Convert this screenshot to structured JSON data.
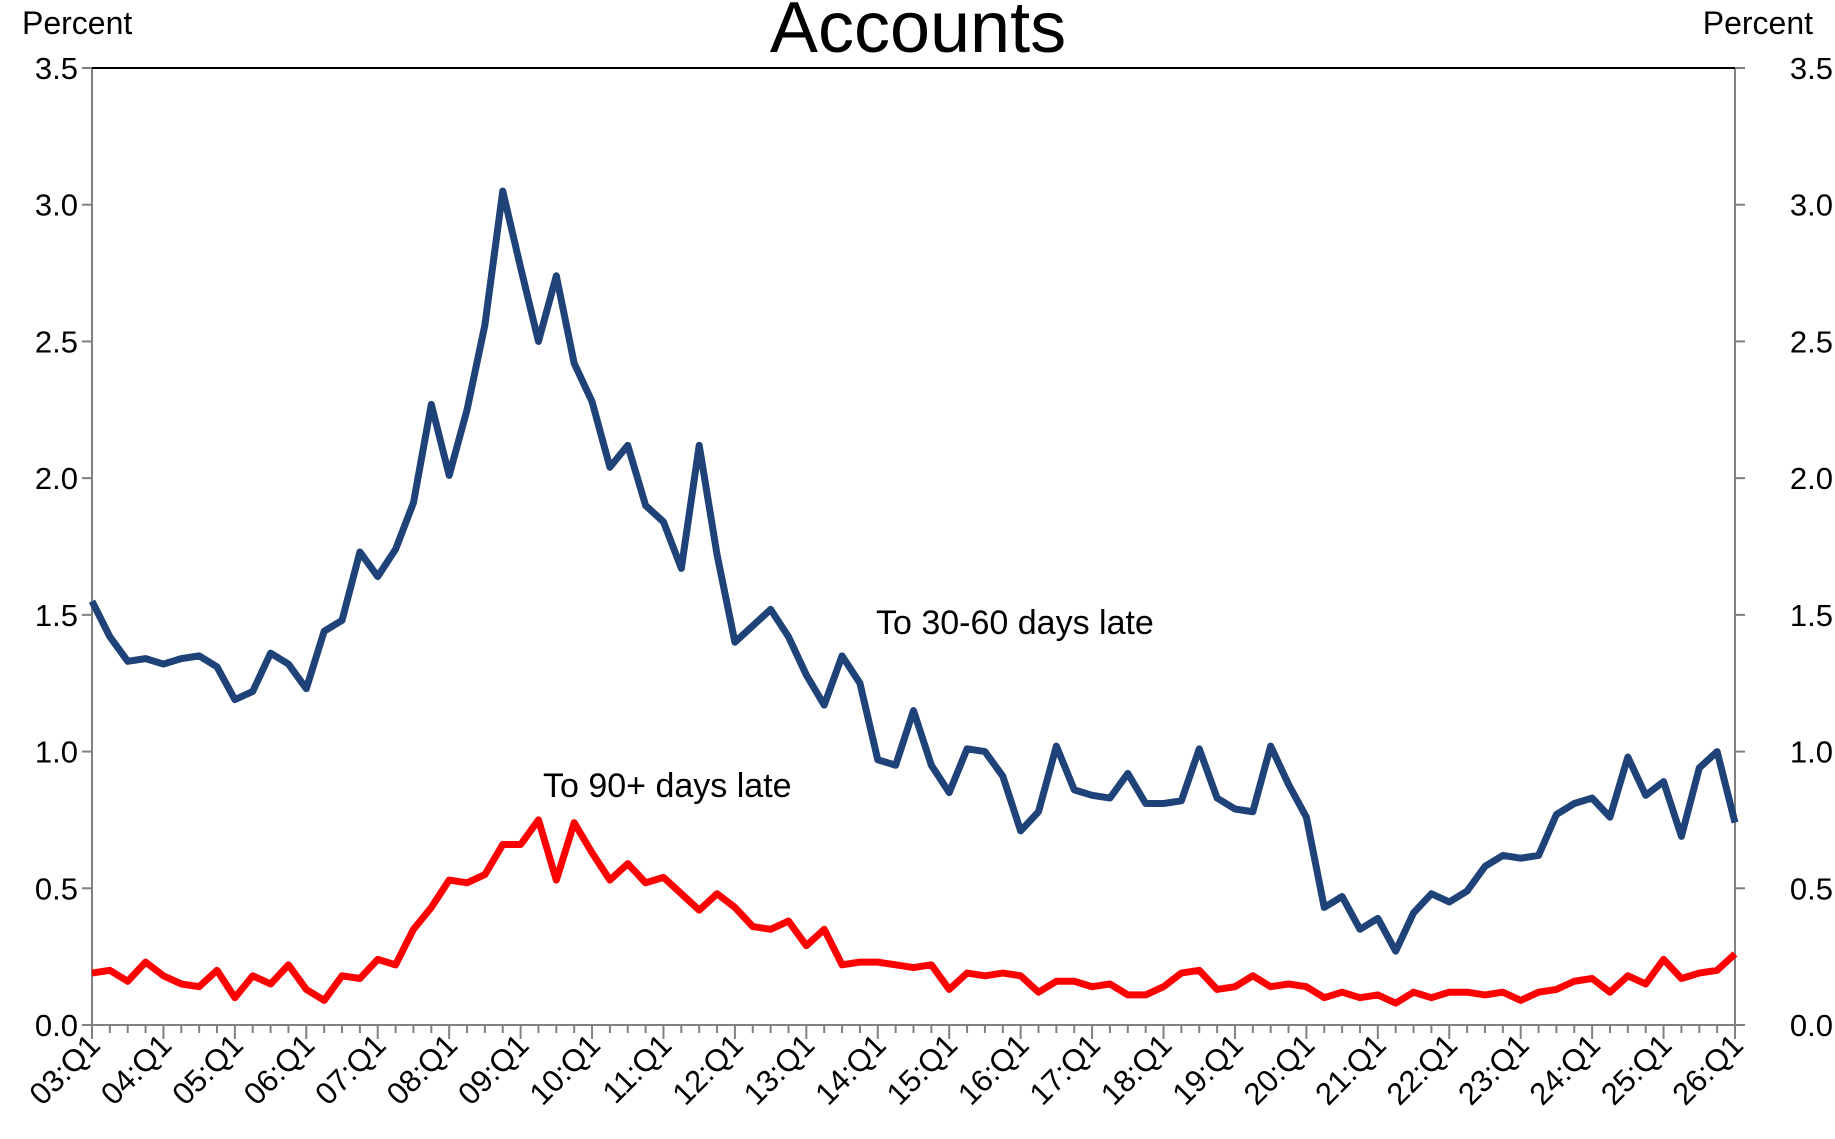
{
  "chart_data": {
    "type": "line",
    "title": "Accounts",
    "ylabel": "Percent",
    "y2label": "Percent",
    "categories": [
      "03:Q1",
      null,
      null,
      null,
      "04:Q1",
      null,
      null,
      null,
      "05:Q1",
      null,
      null,
      null,
      "06:Q1",
      null,
      null,
      null,
      "07:Q1",
      null,
      null,
      null,
      "08:Q1",
      null,
      null,
      null,
      "09:Q1",
      null,
      null,
      null,
      "10:Q1",
      null,
      null,
      null,
      "11:Q1",
      null,
      null,
      null,
      "12:Q1",
      null,
      null,
      null,
      "13:Q1",
      null,
      null,
      null,
      "14:Q1",
      null,
      null,
      null,
      "15:Q1",
      null,
      null,
      null,
      "16:Q1",
      null,
      null,
      null,
      "17:Q1",
      null,
      null,
      null,
      "18:Q1",
      null,
      null,
      null,
      "19:Q1",
      null,
      null,
      null,
      "20:Q1",
      null,
      null,
      null,
      "21:Q1",
      null,
      null,
      null,
      "22:Q1",
      null,
      null,
      null,
      "23:Q1",
      null,
      null,
      null,
      "24:Q1",
      null,
      null,
      null,
      "25:Q1",
      null,
      null,
      null,
      "26:Q1"
    ],
    "series": [
      {
        "name": "To 30-60 days late",
        "color": "#1f4278",
        "values": [
          1.55,
          1.42,
          1.33,
          1.34,
          1.32,
          1.34,
          1.35,
          1.31,
          1.19,
          1.22,
          1.36,
          1.32,
          1.23,
          1.44,
          1.48,
          1.73,
          1.64,
          1.74,
          1.91,
          2.27,
          2.01,
          2.25,
          2.56,
          3.05,
          2.77,
          2.5,
          2.74,
          2.42,
          2.28,
          2.04,
          2.12,
          1.9,
          1.84,
          1.67,
          2.12,
          1.72,
          1.4,
          1.46,
          1.52,
          1.42,
          1.28,
          1.17,
          1.35,
          1.25,
          0.97,
          0.95,
          1.15,
          0.95,
          0.85,
          1.01,
          1.0,
          0.91,
          0.71,
          0.78,
          1.02,
          0.86,
          0.84,
          0.83,
          0.92,
          0.81,
          0.81,
          0.82,
          1.01,
          0.83,
          0.79,
          0.78,
          1.02,
          0.88,
          0.76,
          0.43,
          0.47,
          0.35,
          0.39,
          0.27,
          0.41,
          0.48,
          0.45,
          0.49,
          0.58,
          0.62,
          0.61,
          0.62,
          0.77,
          0.81,
          0.83,
          0.76,
          0.98,
          0.84,
          0.89,
          0.69,
          0.94,
          1.0,
          0.74
        ]
      },
      {
        "name": "To 90+ days late",
        "color": "#ff0000",
        "values": [
          0.19,
          0.2,
          0.16,
          0.23,
          0.18,
          0.15,
          0.14,
          0.2,
          0.1,
          0.18,
          0.15,
          0.22,
          0.13,
          0.09,
          0.18,
          0.17,
          0.24,
          0.22,
          0.35,
          0.43,
          0.53,
          0.52,
          0.55,
          0.66,
          0.66,
          0.75,
          0.53,
          0.74,
          0.63,
          0.53,
          0.59,
          0.52,
          0.54,
          0.48,
          0.42,
          0.48,
          0.43,
          0.36,
          0.35,
          0.38,
          0.29,
          0.35,
          0.22,
          0.23,
          0.23,
          0.22,
          0.21,
          0.22,
          0.13,
          0.19,
          0.18,
          0.19,
          0.18,
          0.12,
          0.16,
          0.16,
          0.14,
          0.15,
          0.11,
          0.11,
          0.14,
          0.19,
          0.2,
          0.13,
          0.14,
          0.18,
          0.14,
          0.15,
          0.14,
          0.1,
          0.12,
          0.1,
          0.11,
          0.08,
          0.12,
          0.1,
          0.12,
          0.12,
          0.11,
          0.12,
          0.09,
          0.12,
          0.13,
          0.16,
          0.17,
          0.12,
          0.18,
          0.15,
          0.24,
          0.17,
          0.19,
          0.2,
          0.26
        ]
      }
    ],
    "ylim": [
      0,
      3.5
    ],
    "yticks": [
      {
        "value": 0,
        "label": "0.0"
      },
      {
        "value": 0.5,
        "label": "0.5"
      },
      {
        "value": 1,
        "label": "1.0"
      },
      {
        "value": 1.5,
        "label": "1.5"
      },
      {
        "value": 2,
        "label": "2.0"
      },
      {
        "value": 2.5,
        "label": "2.5"
      },
      {
        "value": 3,
        "label": "3.0"
      },
      {
        "value": 3.5,
        "label": "3.5"
      }
    ],
    "y2lim": [
      0,
      3.5
    ],
    "y2ticks": [
      {
        "value": 0,
        "label": "0.0"
      },
      {
        "value": 0.5,
        "label": "0.5"
      },
      {
        "value": 1,
        "label": "1.0"
      },
      {
        "value": 1.5,
        "label": "1.5"
      },
      {
        "value": 2,
        "label": "2.0"
      },
      {
        "value": 2.5,
        "label": "2.5"
      },
      {
        "value": 3,
        "label": "3.0"
      },
      {
        "value": 3.5,
        "label": "3.5"
      }
    ],
    "grid": false
  }
}
